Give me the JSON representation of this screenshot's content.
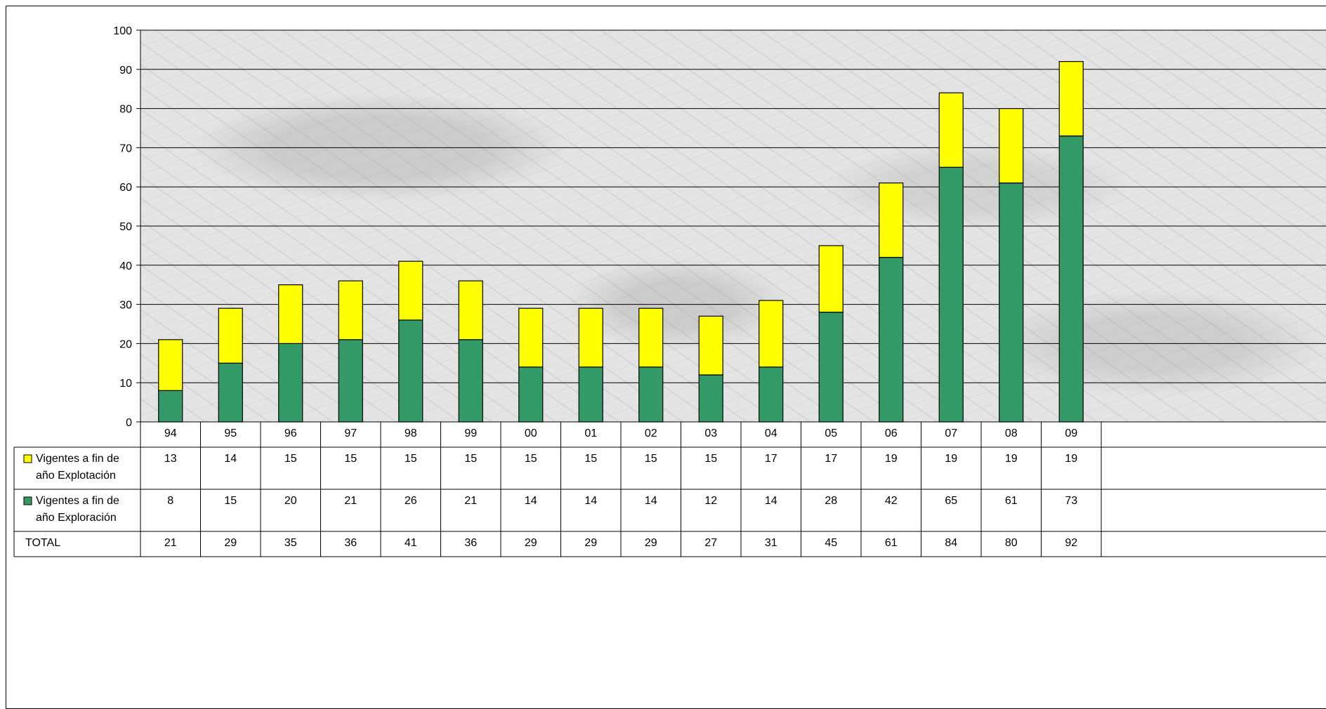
{
  "chart_data": {
    "type": "bar",
    "stacked": true,
    "categories": [
      "94",
      "95",
      "96",
      "97",
      "98",
      "99",
      "00",
      "01",
      "02",
      "03",
      "04",
      "05",
      "06",
      "07",
      "08",
      "09"
    ],
    "series": [
      {
        "name": "Vigentes a fin de año Exploración",
        "color": "#339966",
        "values": [
          8,
          15,
          20,
          21,
          26,
          21,
          14,
          14,
          14,
          12,
          14,
          28,
          42,
          65,
          61,
          73
        ]
      },
      {
        "name": "Vigentes a fin de año Explotación",
        "color": "#ffff00",
        "values": [
          13,
          14,
          15,
          15,
          15,
          15,
          15,
          15,
          15,
          15,
          17,
          17,
          19,
          19,
          19,
          19
        ]
      }
    ],
    "table": {
      "rows": [
        {
          "label_line1": "Vigentes a fin de",
          "label_line2": "año Explotación",
          "swatch": "#ffff00",
          "values": [
            "13",
            "14",
            "15",
            "15",
            "15",
            "15",
            "15",
            "15",
            "15",
            "15",
            "17",
            "17",
            "19",
            "19",
            "19",
            "19"
          ]
        },
        {
          "label_line1": "Vigentes a fin de",
          "label_line2": "año Exploración",
          "swatch": "#339966",
          "values": [
            "8",
            "15",
            "20",
            "21",
            "26",
            "21",
            "14",
            "14",
            "14",
            "12",
            "14",
            "28",
            "42",
            "65",
            "61",
            "73"
          ]
        },
        {
          "label_line1": "TOTAL",
          "label_line2": "",
          "swatch": "",
          "values": [
            "21",
            "29",
            "35",
            "36",
            "41",
            "36",
            "29",
            "29",
            "29",
            "27",
            "31",
            "45",
            "61",
            "84",
            "80",
            "92"
          ]
        }
      ]
    },
    "ylim": [
      0,
      100
    ],
    "yticks": [
      "0",
      "10",
      "20",
      "30",
      "40",
      "50",
      "60",
      "70",
      "80",
      "90",
      "100"
    ],
    "grid": true,
    "legend": "data-table"
  }
}
